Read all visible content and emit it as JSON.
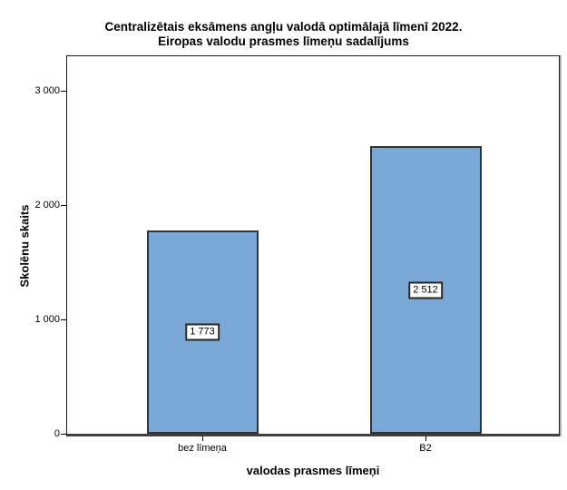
{
  "title": {
    "line1": "Centralizētais eksāmens angļu valodā optimālajā līmenī 2022.",
    "line2": "Eiropas valodu prasmes līmeņu sadalījums"
  },
  "colors": {
    "bar_fill": "#79a7d6",
    "bar_border": "#333333",
    "axis_line": "#3f3f3f",
    "frame": "#1a1a1a",
    "label_box_bg": "#ffffff",
    "label_box_border": "#242424"
  },
  "chart_data": {
    "type": "bar",
    "title": "Centralizētais eksāmens angļu valodā optimālajā līmenī 2022. Eiropas valodu prasmes līmeņu sadalījums",
    "categories": [
      "bez līmeņa",
      "B2"
    ],
    "values": [
      1773,
      2512
    ],
    "value_labels": [
      "1 773",
      "2 512"
    ],
    "xlabel": "valodas prasmes līmeņi",
    "ylabel": "Skolēnu skaits",
    "ylim": [
      0,
      3300
    ],
    "yticks": [
      0,
      1000,
      2000,
      3000
    ],
    "ytick_labels": [
      "0",
      "1 000",
      "2 000",
      "3 000"
    ],
    "grid": false,
    "legend": "none"
  }
}
